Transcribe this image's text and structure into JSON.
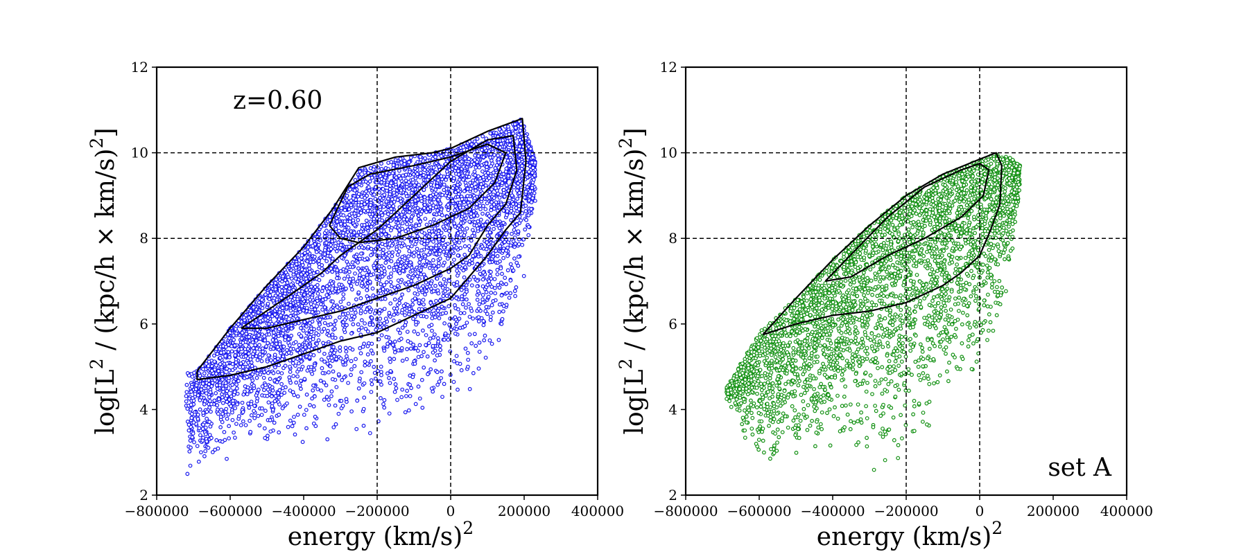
{
  "chart_data": [
    {
      "type": "scatter",
      "panel": "left",
      "annotation": "z=0.60",
      "annotation_position": "top-left",
      "xlabel": "energy",
      "xlabel_unit": "(km/s)",
      "xlabel_unit_sup": "2",
      "ylabel_pre": "log[L",
      "ylabel_sup1": "2",
      "ylabel_mid": " / (kpc/h × km/s)",
      "ylabel_sup2": "2",
      "ylabel_post": "]",
      "xlim": [
        -800000,
        400000
      ],
      "ylim": [
        2,
        12
      ],
      "xticks": [
        -800000,
        -600000,
        -400000,
        -200000,
        0,
        200000,
        400000
      ],
      "xtick_labels": [
        "−800000",
        "−600000",
        "−400000",
        "−200000",
        "0",
        "200000",
        "400000"
      ],
      "yticks": [
        2,
        4,
        6,
        8,
        10,
        12
      ],
      "ytick_labels": [
        "2",
        "4",
        "6",
        "8",
        "10",
        "12"
      ],
      "reference_lines_x": [
        -200000,
        0
      ],
      "reference_lines_y": [
        8,
        10
      ],
      "marker_color": "#1515ee",
      "marker_style": "hollow-circle",
      "point_cloud": {
        "x_range": [
          -720000,
          230000
        ],
        "upper_envelope": [
          [
            -690000,
            4.9
          ],
          [
            -600000,
            5.9
          ],
          [
            -500000,
            6.9
          ],
          [
            -400000,
            7.8
          ],
          [
            -320000,
            8.7
          ],
          [
            -250000,
            9.6
          ],
          [
            -150000,
            9.85
          ],
          [
            -50000,
            10.0
          ],
          [
            0,
            10.1
          ],
          [
            100000,
            10.45
          ],
          [
            195000,
            10.8
          ],
          [
            230000,
            9.8
          ]
        ],
        "lower_envelope": [
          [
            -720000,
            2.2
          ],
          [
            -600000,
            2.8
          ],
          [
            -400000,
            3.0
          ],
          [
            -200000,
            3.4
          ],
          [
            0,
            4.0
          ],
          [
            100000,
            4.6
          ],
          [
            150000,
            5.6
          ],
          [
            200000,
            7.0
          ],
          [
            230000,
            8.8
          ]
        ],
        "count_estimate": 30000
      },
      "contours": [
        {
          "level": "outer",
          "points": [
            [
              -690000,
              4.9
            ],
            [
              -600000,
              5.9
            ],
            [
              -500000,
              6.9
            ],
            [
              -400000,
              7.8
            ],
            [
              -320000,
              8.7
            ],
            [
              -250000,
              9.65
            ],
            [
              -150000,
              9.9
            ],
            [
              -50000,
              10.0
            ],
            [
              0,
              10.1
            ],
            [
              100000,
              10.5
            ],
            [
              195000,
              10.8
            ],
            [
              205000,
              9.8
            ],
            [
              190000,
              8.6
            ],
            [
              150000,
              8.2
            ],
            [
              100000,
              7.6
            ],
            [
              50000,
              7.1
            ],
            [
              0,
              6.6
            ],
            [
              -100000,
              6.2
            ],
            [
              -200000,
              5.8
            ],
            [
              -300000,
              5.6
            ],
            [
              -400000,
              5.3
            ],
            [
              -500000,
              5.0
            ],
            [
              -600000,
              4.8
            ],
            [
              -690000,
              4.7
            ],
            [
              -690000,
              4.9
            ]
          ]
        },
        {
          "level": "middle",
          "points": [
            [
              -570000,
              5.9
            ],
            [
              -450000,
              6.6
            ],
            [
              -350000,
              7.2
            ],
            [
              -300000,
              7.6
            ],
            [
              -200000,
              8.2
            ],
            [
              -100000,
              9.0
            ],
            [
              0,
              9.8
            ],
            [
              100000,
              10.3
            ],
            [
              170000,
              10.4
            ],
            [
              180000,
              9.6
            ],
            [
              150000,
              8.8
            ],
            [
              100000,
              8.3
            ],
            [
              50000,
              7.6
            ],
            [
              0,
              7.3
            ],
            [
              -100000,
              6.9
            ],
            [
              -200000,
              6.6
            ],
            [
              -300000,
              6.3
            ],
            [
              -400000,
              6.1
            ],
            [
              -500000,
              5.9
            ],
            [
              -570000,
              5.9
            ]
          ]
        },
        {
          "level": "inner",
          "points": [
            [
              -330000,
              8.3
            ],
            [
              -280000,
              9.2
            ],
            [
              -220000,
              9.5
            ],
            [
              -100000,
              9.7
            ],
            [
              0,
              9.9
            ],
            [
              100000,
              10.2
            ],
            [
              150000,
              10.0
            ],
            [
              120000,
              9.3
            ],
            [
              50000,
              8.7
            ],
            [
              -50000,
              8.3
            ],
            [
              -150000,
              8.0
            ],
            [
              -250000,
              7.9
            ],
            [
              -300000,
              8.0
            ],
            [
              -330000,
              8.3
            ]
          ]
        }
      ]
    },
    {
      "type": "scatter",
      "panel": "right",
      "annotation": "set A",
      "annotation_position": "bottom-right",
      "xlabel": "energy",
      "xlabel_unit": "(km/s)",
      "xlabel_unit_sup": "2",
      "ylabel_pre": "log[L",
      "ylabel_sup1": "2",
      "ylabel_mid": " / (kpc/h × km/s)",
      "ylabel_sup2": "2",
      "ylabel_post": "]",
      "xlim": [
        -800000,
        400000
      ],
      "ylim": [
        2,
        12
      ],
      "xticks": [
        -800000,
        -600000,
        -400000,
        -200000,
        0,
        200000,
        400000
      ],
      "xtick_labels": [
        "−800000",
        "−600000",
        "−400000",
        "−200000",
        "0",
        "200000",
        "400000"
      ],
      "yticks": [
        2,
        4,
        6,
        8,
        10,
        12
      ],
      "ytick_labels": [
        "2",
        "4",
        "6",
        "8",
        "10",
        "12"
      ],
      "reference_lines_x": [
        -200000,
        0
      ],
      "reference_lines_y": [
        8,
        10
      ],
      "marker_color": "#0f8f0f",
      "marker_style": "hollow-circle",
      "point_cloud": {
        "x_range": [
          -690000,
          110000
        ],
        "upper_envelope": [
          [
            -690000,
            4.5
          ],
          [
            -600000,
            5.8
          ],
          [
            -500000,
            6.6
          ],
          [
            -400000,
            7.5
          ],
          [
            -300000,
            8.3
          ],
          [
            -200000,
            9.0
          ],
          [
            -100000,
            9.5
          ],
          [
            0,
            9.85
          ],
          [
            50000,
            10.0
          ],
          [
            80000,
            9.9
          ],
          [
            110000,
            9.7
          ]
        ],
        "lower_envelope": [
          [
            -690000,
            4.2
          ],
          [
            -600000,
            2.5
          ],
          [
            -400000,
            3.0
          ],
          [
            -250000,
            2.2
          ],
          [
            -100000,
            3.8
          ],
          [
            0,
            4.8
          ],
          [
            50000,
            5.5
          ],
          [
            80000,
            7.0
          ],
          [
            110000,
            9.0
          ]
        ],
        "count_estimate": 15000
      },
      "contours": [
        {
          "level": "outer",
          "points": [
            [
              -590000,
              5.75
            ],
            [
              -500000,
              6.6
            ],
            [
              -400000,
              7.5
            ],
            [
              -300000,
              8.3
            ],
            [
              -200000,
              9.0
            ],
            [
              -100000,
              9.5
            ],
            [
              0,
              9.85
            ],
            [
              45000,
              10.0
            ],
            [
              60000,
              9.7
            ],
            [
              55000,
              8.8
            ],
            [
              30000,
              8.2
            ],
            [
              0,
              7.6
            ],
            [
              -50000,
              7.2
            ],
            [
              -100000,
              6.9
            ],
            [
              -150000,
              6.7
            ],
            [
              -200000,
              6.5
            ],
            [
              -300000,
              6.3
            ],
            [
              -400000,
              6.2
            ],
            [
              -500000,
              6.0
            ],
            [
              -590000,
              5.75
            ]
          ]
        },
        {
          "level": "inner",
          "points": [
            [
              -420000,
              7.0
            ],
            [
              -330000,
              7.8
            ],
            [
              -250000,
              8.5
            ],
            [
              -150000,
              9.2
            ],
            [
              -50000,
              9.6
            ],
            [
              0,
              9.75
            ],
            [
              25000,
              9.6
            ],
            [
              10000,
              9.0
            ],
            [
              -50000,
              8.5
            ],
            [
              -150000,
              8.0
            ],
            [
              -250000,
              7.6
            ],
            [
              -350000,
              7.1
            ],
            [
              -420000,
              7.0
            ]
          ]
        }
      ]
    }
  ]
}
